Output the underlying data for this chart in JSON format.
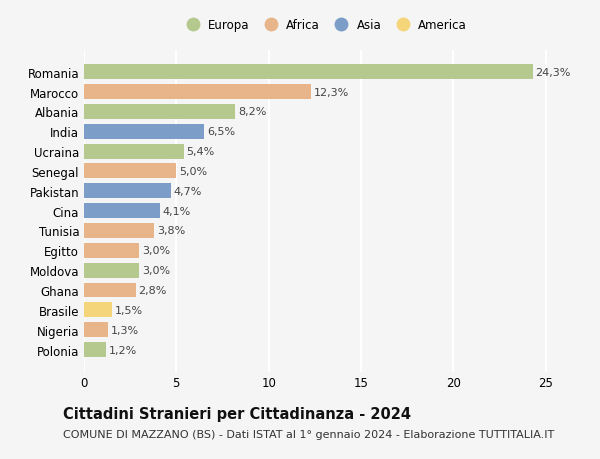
{
  "countries": [
    "Romania",
    "Marocco",
    "Albania",
    "India",
    "Ucraina",
    "Senegal",
    "Pakistan",
    "Cina",
    "Tunisia",
    "Egitto",
    "Moldova",
    "Ghana",
    "Brasile",
    "Nigeria",
    "Polonia"
  ],
  "values": [
    24.3,
    12.3,
    8.2,
    6.5,
    5.4,
    5.0,
    4.7,
    4.1,
    3.8,
    3.0,
    3.0,
    2.8,
    1.5,
    1.3,
    1.2
  ],
  "labels": [
    "24,3%",
    "12,3%",
    "8,2%",
    "6,5%",
    "5,4%",
    "5,0%",
    "4,7%",
    "4,1%",
    "3,8%",
    "3,0%",
    "3,0%",
    "2,8%",
    "1,5%",
    "1,3%",
    "1,2%"
  ],
  "continents": [
    "Europa",
    "Africa",
    "Europa",
    "Asia",
    "Europa",
    "Africa",
    "Asia",
    "Asia",
    "Africa",
    "Africa",
    "Europa",
    "Africa",
    "America",
    "Africa",
    "Europa"
  ],
  "colors": {
    "Europa": "#b5c98e",
    "Africa": "#e8b48a",
    "Asia": "#7b9dc7",
    "America": "#f5d57a"
  },
  "legend_order": [
    "Europa",
    "Africa",
    "Asia",
    "America"
  ],
  "title": "Cittadini Stranieri per Cittadinanza - 2024",
  "subtitle": "COMUNE DI MAZZANO (BS) - Dati ISTAT al 1° gennaio 2024 - Elaborazione TUTTITALIA.IT",
  "xlim": [
    0,
    26
  ],
  "xticks": [
    0,
    5,
    10,
    15,
    20,
    25
  ],
  "background_color": "#f5f5f5",
  "grid_color": "#ffffff",
  "bar_height": 0.75,
  "title_fontsize": 10.5,
  "subtitle_fontsize": 8,
  "tick_fontsize": 8.5,
  "label_fontsize": 8,
  "legend_fontsize": 8.5
}
